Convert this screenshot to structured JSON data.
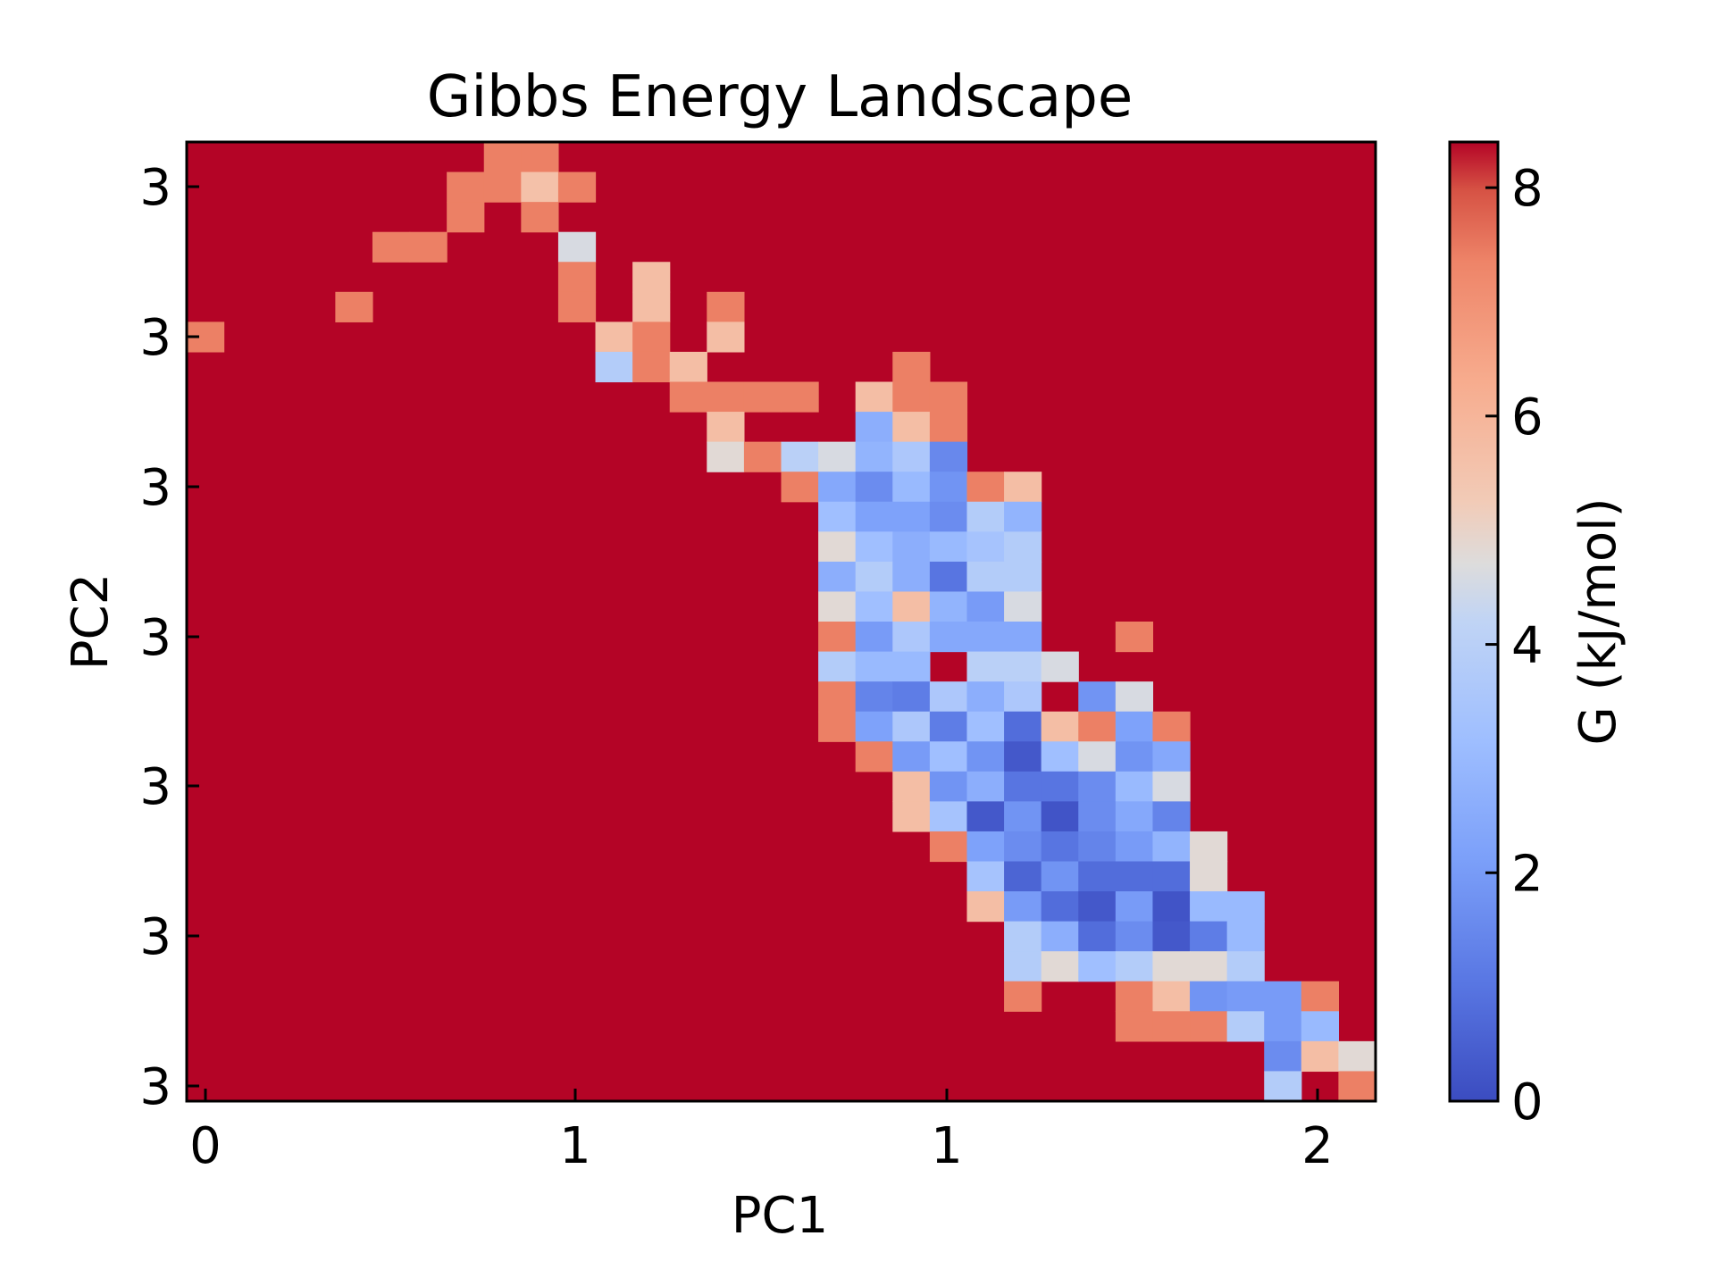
{
  "chart_data": {
    "type": "heatmap",
    "title": "Gibbs Energy Landscape",
    "xlabel": "PC1",
    "ylabel": "PC2",
    "colorbar_label": "G (kJ/mol)",
    "colormap": "coolwarm",
    "value_range": [
      0,
      8.4
    ],
    "fill_value": 8.4,
    "x_tick_labels": [
      "0",
      "1",
      "1",
      "2"
    ],
    "y_tick_labels": [
      "3",
      "3",
      "3",
      "3",
      "3",
      "3",
      "3"
    ],
    "colorbar_ticks": [
      "0",
      "2",
      "4",
      "6",
      "8"
    ],
    "colorbar_tick_values": [
      0,
      2,
      4,
      6,
      8
    ],
    "grid": false,
    "cols": 32,
    "rows": 32,
    "cells": [
      [
        8,
        0,
        7.4
      ],
      [
        9,
        0,
        7.4
      ],
      [
        7,
        1,
        7.4
      ],
      [
        8,
        1,
        7.4
      ],
      [
        9,
        1,
        5.6
      ],
      [
        10,
        1,
        7.4
      ],
      [
        7,
        2,
        7.4
      ],
      [
        9,
        2,
        7.4
      ],
      [
        5,
        3,
        7.4
      ],
      [
        6,
        3,
        7.4
      ],
      [
        10,
        3,
        4.6
      ],
      [
        10,
        4,
        7.4
      ],
      [
        12,
        4,
        5.7
      ],
      [
        4,
        5,
        7.4
      ],
      [
        10,
        5,
        7.4
      ],
      [
        12,
        5,
        5.7
      ],
      [
        14,
        5,
        7.4
      ],
      [
        0,
        6,
        7.4
      ],
      [
        11,
        6,
        5.7
      ],
      [
        12,
        6,
        7.4
      ],
      [
        14,
        6,
        5.7
      ],
      [
        11,
        7,
        3.8
      ],
      [
        12,
        7,
        7.4
      ],
      [
        13,
        7,
        5.7
      ],
      [
        19,
        7,
        7.4
      ],
      [
        13,
        8,
        7.4
      ],
      [
        14,
        8,
        7.4
      ],
      [
        15,
        8,
        7.4
      ],
      [
        16,
        8,
        7.4
      ],
      [
        18,
        8,
        5.7
      ],
      [
        19,
        8,
        7.4
      ],
      [
        20,
        8,
        7.4
      ],
      [
        14,
        9,
        5.7
      ],
      [
        18,
        9,
        2.6
      ],
      [
        19,
        9,
        5.7
      ],
      [
        20,
        9,
        7.4
      ],
      [
        14,
        10,
        4.8
      ],
      [
        15,
        10,
        7.4
      ],
      [
        16,
        10,
        4.0
      ],
      [
        17,
        10,
        4.6
      ],
      [
        18,
        10,
        2.8
      ],
      [
        19,
        10,
        3.6
      ],
      [
        20,
        10,
        1.5
      ],
      [
        16,
        11,
        7.4
      ],
      [
        17,
        11,
        2.4
      ],
      [
        18,
        11,
        1.6
      ],
      [
        19,
        11,
        3.0
      ],
      [
        20,
        11,
        1.8
      ],
      [
        21,
        11,
        7.4
      ],
      [
        22,
        11,
        5.7
      ],
      [
        17,
        12,
        3.2
      ],
      [
        18,
        12,
        2.2
      ],
      [
        19,
        12,
        2.2
      ],
      [
        20,
        12,
        1.6
      ],
      [
        21,
        12,
        3.8
      ],
      [
        22,
        12,
        2.8
      ],
      [
        17,
        13,
        4.8
      ],
      [
        18,
        13,
        3.2
      ],
      [
        19,
        13,
        2.6
      ],
      [
        20,
        13,
        3.0
      ],
      [
        21,
        13,
        3.4
      ],
      [
        22,
        13,
        3.8
      ],
      [
        17,
        14,
        2.6
      ],
      [
        18,
        14,
        3.8
      ],
      [
        19,
        14,
        2.6
      ],
      [
        20,
        14,
        1.0
      ],
      [
        21,
        14,
        3.8
      ],
      [
        22,
        14,
        3.8
      ],
      [
        17,
        15,
        4.8
      ],
      [
        18,
        15,
        3.2
      ],
      [
        19,
        15,
        5.7
      ],
      [
        20,
        15,
        2.8
      ],
      [
        21,
        15,
        2.0
      ],
      [
        22,
        15,
        4.6
      ],
      [
        17,
        16,
        7.4
      ],
      [
        18,
        16,
        2.0
      ],
      [
        19,
        16,
        3.6
      ],
      [
        20,
        16,
        2.4
      ],
      [
        21,
        16,
        2.4
      ],
      [
        22,
        16,
        2.4
      ],
      [
        25,
        16,
        7.4
      ],
      [
        17,
        17,
        3.8
      ],
      [
        18,
        17,
        3.0
      ],
      [
        19,
        17,
        3.0
      ],
      [
        21,
        17,
        4.0
      ],
      [
        22,
        17,
        4.0
      ],
      [
        23,
        17,
        4.6
      ],
      [
        17,
        18,
        7.4
      ],
      [
        18,
        18,
        1.4
      ],
      [
        19,
        18,
        1.2
      ],
      [
        20,
        18,
        3.6
      ],
      [
        21,
        18,
        2.6
      ],
      [
        22,
        18,
        3.6
      ],
      [
        24,
        18,
        1.8
      ],
      [
        25,
        18,
        4.6
      ],
      [
        17,
        19,
        7.4
      ],
      [
        18,
        19,
        2.2
      ],
      [
        19,
        19,
        3.6
      ],
      [
        20,
        19,
        1.2
      ],
      [
        21,
        19,
        3.2
      ],
      [
        22,
        19,
        0.8
      ],
      [
        23,
        19,
        5.7
      ],
      [
        24,
        19,
        7.4
      ],
      [
        25,
        19,
        2.2
      ],
      [
        26,
        19,
        7.4
      ],
      [
        18,
        20,
        7.4
      ],
      [
        19,
        20,
        2.0
      ],
      [
        20,
        20,
        3.2
      ],
      [
        21,
        20,
        1.8
      ],
      [
        22,
        20,
        0.3
      ],
      [
        23,
        20,
        3.2
      ],
      [
        24,
        20,
        4.6
      ],
      [
        25,
        20,
        1.8
      ],
      [
        26,
        20,
        2.4
      ],
      [
        19,
        21,
        5.7
      ],
      [
        20,
        21,
        1.8
      ],
      [
        21,
        21,
        2.6
      ],
      [
        22,
        21,
        1.0
      ],
      [
        23,
        21,
        1.0
      ],
      [
        24,
        21,
        1.6
      ],
      [
        25,
        21,
        3.0
      ],
      [
        26,
        21,
        4.6
      ],
      [
        19,
        22,
        5.7
      ],
      [
        20,
        22,
        3.4
      ],
      [
        21,
        22,
        0.3
      ],
      [
        22,
        22,
        1.8
      ],
      [
        23,
        22,
        0.2
      ],
      [
        24,
        22,
        1.6
      ],
      [
        25,
        22,
        2.4
      ],
      [
        26,
        22,
        1.4
      ],
      [
        20,
        23,
        7.4
      ],
      [
        21,
        23,
        2.2
      ],
      [
        22,
        23,
        1.6
      ],
      [
        23,
        23,
        1.0
      ],
      [
        24,
        23,
        1.4
      ],
      [
        25,
        23,
        2.0
      ],
      [
        26,
        23,
        2.8
      ],
      [
        27,
        23,
        4.8
      ],
      [
        21,
        24,
        3.4
      ],
      [
        22,
        24,
        0.6
      ],
      [
        23,
        24,
        1.8
      ],
      [
        24,
        24,
        0.8
      ],
      [
        25,
        24,
        0.8
      ],
      [
        26,
        24,
        0.8
      ],
      [
        27,
        24,
        4.8
      ],
      [
        21,
        25,
        5.7
      ],
      [
        22,
        25,
        2.0
      ],
      [
        23,
        25,
        0.8
      ],
      [
        24,
        25,
        0.3
      ],
      [
        25,
        25,
        2.0
      ],
      [
        26,
        25,
        0.2
      ],
      [
        27,
        25,
        3.0
      ],
      [
        28,
        25,
        3.0
      ],
      [
        22,
        26,
        3.8
      ],
      [
        23,
        26,
        2.6
      ],
      [
        24,
        26,
        0.8
      ],
      [
        25,
        26,
        1.6
      ],
      [
        26,
        26,
        0.3
      ],
      [
        27,
        26,
        1.2
      ],
      [
        28,
        26,
        3.0
      ],
      [
        22,
        27,
        3.8
      ],
      [
        23,
        27,
        4.8
      ],
      [
        24,
        27,
        3.2
      ],
      [
        25,
        27,
        3.8
      ],
      [
        26,
        27,
        4.8
      ],
      [
        27,
        27,
        4.8
      ],
      [
        28,
        27,
        3.8
      ],
      [
        22,
        28,
        7.4
      ],
      [
        25,
        28,
        7.4
      ],
      [
        26,
        28,
        5.7
      ],
      [
        27,
        28,
        1.8
      ],
      [
        28,
        28,
        2.0
      ],
      [
        29,
        28,
        2.0
      ],
      [
        30,
        28,
        7.4
      ],
      [
        25,
        29,
        7.4
      ],
      [
        26,
        29,
        7.4
      ],
      [
        27,
        29,
        7.4
      ],
      [
        28,
        29,
        3.8
      ],
      [
        29,
        29,
        2.0
      ],
      [
        30,
        29,
        3.0
      ],
      [
        29,
        30,
        1.6
      ],
      [
        30,
        30,
        5.7
      ],
      [
        31,
        30,
        4.8
      ],
      [
        29,
        31,
        3.8
      ],
      [
        31,
        31,
        7.4
      ]
    ]
  }
}
